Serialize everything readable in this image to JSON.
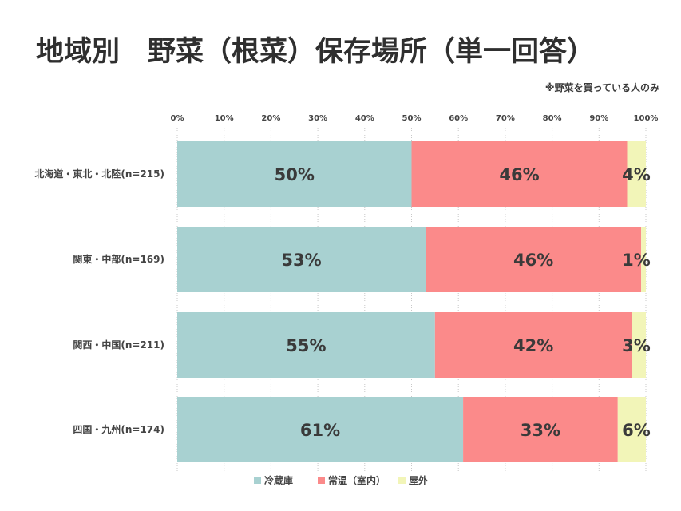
{
  "title": "地域別　野菜（根菜）保存場所（単一回答）",
  "note": "※野菜を買っている人のみ",
  "chart_data": {
    "type": "bar",
    "orientation": "horizontal",
    "stacked": true,
    "categories": [
      "北海道・東北・北陸(n=215)",
      "関東・中部(n=169)",
      "関西・中国(n=211)",
      "四国・九州(n=174)"
    ],
    "series": [
      {
        "name": "冷蔵庫",
        "color": "#a8d1d1",
        "values": [
          50,
          53,
          55,
          61
        ]
      },
      {
        "name": "常温（室内）",
        "color": "#fb8a8a",
        "values": [
          46,
          46,
          42,
          33
        ]
      },
      {
        "name": "屋外",
        "color": "#f2f5b8",
        "values": [
          4,
          1,
          3,
          6
        ]
      }
    ],
    "data_labels": [
      [
        "50%",
        "53%",
        "55%",
        "61%"
      ],
      [
        "46%",
        "46%",
        "42%",
        "33%"
      ],
      [
        "4%",
        "1%",
        "3%",
        "6%"
      ]
    ],
    "x_ticks": [
      "0%",
      "10%",
      "20%",
      "30%",
      "40%",
      "50%",
      "60%",
      "70%",
      "80%",
      "90%",
      "100%"
    ],
    "xlim": [
      0,
      100
    ],
    "grid": "vertical dotted",
    "legend_position": "bottom"
  }
}
